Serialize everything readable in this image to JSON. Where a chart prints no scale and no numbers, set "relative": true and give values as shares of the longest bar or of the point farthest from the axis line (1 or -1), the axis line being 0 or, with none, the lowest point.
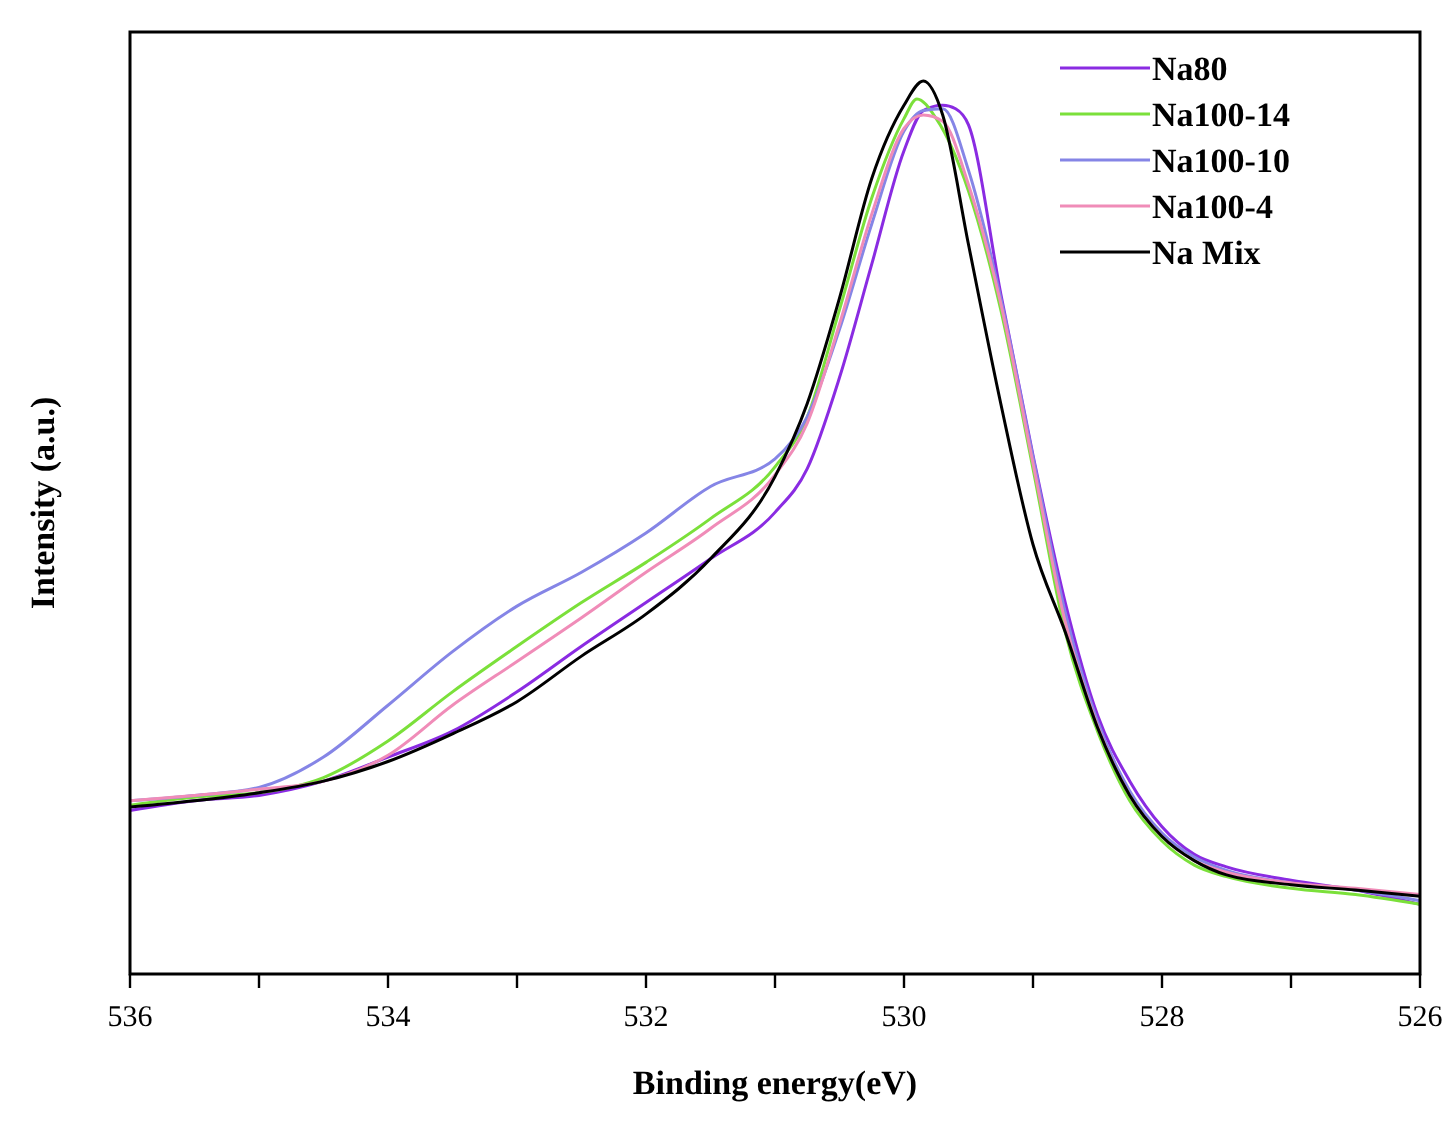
{
  "chart_data": {
    "type": "line",
    "relative": true,
    "xlabel": "Binding energy(eV)",
    "ylabel": "Intensity (a.u.)",
    "xlim": [
      536,
      526
    ],
    "xticks": [
      536,
      {
        "value": 535,
        "label": null
      },
      534,
      {
        "value": 533,
        "label": null
      },
      532,
      {
        "value": 531,
        "label": null
      },
      530,
      {
        "value": 529,
        "label": null
      },
      528,
      {
        "value": 527,
        "label": null
      },
      526
    ],
    "tick_labels": "x",
    "legend": "top right",
    "line_style": "solid",
    "series": [
      {
        "name": "Na80",
        "color": "#8a2be2",
        "x": [
          536,
          535.5,
          535,
          534.5,
          534,
          533.5,
          533,
          532.5,
          532,
          531.5,
          531,
          530.75,
          530.5,
          530.25,
          530,
          529.85,
          529.7,
          529.6,
          529.5,
          529.25,
          529,
          528.75,
          528.5,
          528.25,
          528,
          527.75,
          527.5,
          527,
          526.5,
          526
        ],
        "values": [
          0.183,
          0.194,
          0.2,
          0.216,
          0.243,
          0.272,
          0.316,
          0.367,
          0.416,
          0.465,
          0.517,
          0.566,
          0.668,
          0.795,
          0.922,
          0.967,
          0.973,
          0.969,
          0.951,
          0.762,
          0.581,
          0.416,
          0.29,
          0.216,
          0.165,
          0.134,
          0.12,
          0.105,
          0.094,
          0.078
        ]
      },
      {
        "name": "Na100-14",
        "color": "#7be03a",
        "x": [
          536,
          535.5,
          535,
          534.5,
          534,
          533.5,
          533,
          532.5,
          532,
          531.5,
          531,
          530.75,
          530.5,
          530.25,
          530,
          529.9,
          529.75,
          529.5,
          529.25,
          529,
          528.75,
          528.5,
          528.25,
          528,
          527.75,
          527.5,
          527,
          526.5,
          526
        ],
        "values": [
          0.189,
          0.198,
          0.203,
          0.22,
          0.261,
          0.316,
          0.367,
          0.416,
          0.461,
          0.51,
          0.568,
          0.624,
          0.744,
          0.869,
          0.958,
          0.98,
          0.958,
          0.877,
          0.744,
          0.566,
          0.383,
          0.272,
          0.194,
          0.149,
          0.122,
          0.109,
          0.096,
          0.089,
          0.078
        ]
      },
      {
        "name": "Na100-10",
        "color": "#8585e6",
        "x": [
          536,
          535.5,
          535,
          534.5,
          534,
          533.5,
          533,
          532.5,
          532,
          531.5,
          531,
          530.75,
          530.5,
          530.25,
          530,
          529.85,
          529.7,
          529.5,
          529.25,
          529,
          528.75,
          528.5,
          528.25,
          528,
          527.75,
          527.5,
          527,
          526.5,
          526
        ],
        "values": [
          0.194,
          0.2,
          0.209,
          0.243,
          0.301,
          0.361,
          0.412,
          0.45,
          0.494,
          0.546,
          0.577,
          0.624,
          0.722,
          0.84,
          0.944,
          0.967,
          0.969,
          0.9,
          0.757,
          0.579,
          0.405,
          0.283,
          0.205,
          0.158,
          0.131,
          0.116,
          0.102,
          0.094,
          0.082
        ]
      },
      {
        "name": "Na100-4",
        "color": "#f08cb8",
        "x": [
          536,
          535.5,
          535,
          534.5,
          534,
          533.5,
          533,
          532.5,
          532,
          531.5,
          531,
          530.75,
          530.5,
          530.25,
          530,
          529.85,
          529.7,
          529.5,
          529.25,
          529,
          528.75,
          528.5,
          528.25,
          528,
          527.75,
          527.5,
          527,
          526.5,
          526
        ],
        "values": [
          0.194,
          0.2,
          0.207,
          0.216,
          0.245,
          0.301,
          0.35,
          0.399,
          0.45,
          0.499,
          0.559,
          0.617,
          0.728,
          0.851,
          0.947,
          0.962,
          0.955,
          0.884,
          0.751,
          0.572,
          0.394,
          0.278,
          0.2,
          0.154,
          0.127,
          0.114,
          0.102,
          0.096,
          0.089
        ]
      },
      {
        "name": "Na Mix",
        "color": "#000000",
        "x": [
          536,
          535.5,
          535,
          534.5,
          534,
          533.5,
          533,
          532.5,
          532,
          531.5,
          531,
          530.75,
          530.5,
          530.25,
          530,
          529.85,
          529.7,
          529.5,
          529.25,
          529,
          528.75,
          528.5,
          528.25,
          528,
          527.75,
          527.5,
          527,
          526.5,
          526
        ],
        "values": [
          0.187,
          0.194,
          0.203,
          0.216,
          0.238,
          0.269,
          0.305,
          0.356,
          0.403,
          0.465,
          0.557,
          0.639,
          0.757,
          0.891,
          0.973,
          1,
          0.962,
          0.817,
          0.639,
          0.481,
          0.383,
          0.276,
          0.2,
          0.154,
          0.127,
          0.111,
          0.1,
          0.094,
          0.087
        ]
      }
    ]
  }
}
